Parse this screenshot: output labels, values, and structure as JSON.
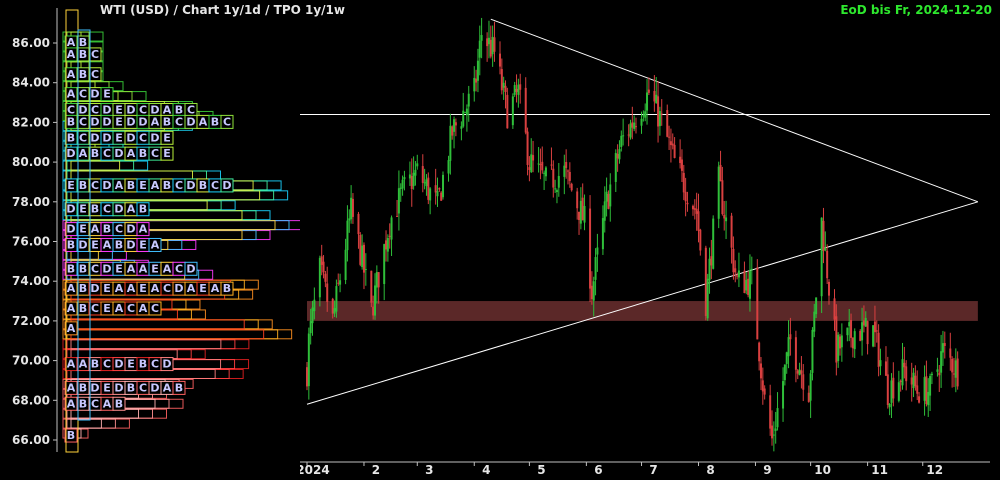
{
  "header": {
    "title": "WTI (USD) /  Chart 1y/1d / TPO 1y/1w",
    "status": "EoD bis Fr, 2024-12-20"
  },
  "colors": {
    "background": "#000000",
    "axis": "#bfbfbf",
    "text": "#e6e6e6",
    "status": "#2ee82e",
    "candle_up": "#2fbf3a",
    "candle_down": "#d94040",
    "trendline": "#ffffff",
    "zone": "#6b2f2f"
  },
  "chart_data": [
    {
      "type": "candlestick",
      "title": "WTI (USD)",
      "x": [
        "2024",
        "2",
        "3",
        "4",
        "5",
        "6",
        "7",
        "8",
        "9",
        "10",
        "11",
        "12"
      ],
      "ylim": [
        65.2,
        87.5
      ],
      "y_ticks": [
        "86.00",
        "84.00",
        "82.00",
        "80.00",
        "78.00",
        "76.00",
        "74.00",
        "72.00",
        "70.00",
        "68.00",
        "66.00"
      ],
      "grid": false,
      "anchors": [
        [
          "2024-01-02",
          71.0
        ],
        [
          "2024-01-08",
          74.5
        ],
        [
          "2024-01-15",
          72.0
        ],
        [
          "2024-01-25",
          77.5
        ],
        [
          "2024-01-30",
          75.5
        ],
        [
          "2024-02-05",
          72.5
        ],
        [
          "2024-02-15",
          77.0
        ],
        [
          "2024-02-22",
          78.5
        ],
        [
          "2024-03-01",
          79.5
        ],
        [
          "2024-03-12",
          77.8
        ],
        [
          "2024-03-20",
          81.5
        ],
        [
          "2024-04-01",
          83.5
        ],
        [
          "2024-04-05",
          86.5
        ],
        [
          "2024-04-12",
          85.5
        ],
        [
          "2024-04-19",
          82.5
        ],
        [
          "2024-04-25",
          83.5
        ],
        [
          "2024-05-01",
          80.0
        ],
        [
          "2024-05-10",
          79.0
        ],
        [
          "2024-05-20",
          79.5
        ],
        [
          "2024-05-31",
          77.0
        ],
        [
          "2024-06-04",
          73.5
        ],
        [
          "2024-06-12",
          78.0
        ],
        [
          "2024-06-20",
          81.0
        ],
        [
          "2024-07-05",
          83.5
        ],
        [
          "2024-07-12",
          82.0
        ],
        [
          "2024-07-19",
          80.0
        ],
        [
          "2024-07-31",
          77.5
        ],
        [
          "2024-08-05",
          73.0
        ],
        [
          "2024-08-12",
          79.0
        ],
        [
          "2024-08-22",
          74.0
        ],
        [
          "2024-08-30",
          74.0
        ],
        [
          "2024-09-06",
          68.0
        ],
        [
          "2024-09-10",
          66.0
        ],
        [
          "2024-09-20",
          71.0
        ],
        [
          "2024-09-30",
          68.5
        ],
        [
          "2024-10-07",
          77.0
        ],
        [
          "2024-10-15",
          70.5
        ],
        [
          "2024-10-25",
          71.5
        ],
        [
          "2024-11-04",
          71.5
        ],
        [
          "2024-11-12",
          68.5
        ],
        [
          "2024-11-21",
          69.5
        ],
        [
          "2024-11-28",
          68.5
        ],
        [
          "2024-12-05",
          68.5
        ],
        [
          "2024-12-12",
          70.5
        ],
        [
          "2024-12-20",
          69.5
        ]
      ],
      "horizontal_level": 82.4,
      "zone": [
        72.0,
        73.0
      ],
      "trendlines": [
        {
          "from": [
            "2024-04-10",
            87.2
          ],
          "to": [
            "2024-12-31",
            78.0
          ]
        },
        {
          "from": [
            "2024-01-01",
            67.8
          ],
          "to": [
            "2024-12-31",
            78.0
          ]
        }
      ]
    },
    {
      "type": "tpo_profile",
      "title": "TPO 1y/1w",
      "price_labels": [
        "86.00",
        "84.00",
        "82.00",
        "80.00",
        "78.00",
        "76.00",
        "74.00",
        "72.00",
        "70.00",
        "68.00",
        "66.00"
      ],
      "rows": [
        {
          "y": 86.0,
          "letters": "AB"
        },
        {
          "y": 85.4,
          "letters": "ABC"
        },
        {
          "y": 84.4,
          "letters": "ABC"
        },
        {
          "y": 83.4,
          "letters": "ACDE"
        },
        {
          "y": 82.6,
          "letters": "CDCDEDCDABC"
        },
        {
          "y": 82.0,
          "letters": "BCDDEDDABCDABC"
        },
        {
          "y": 81.2,
          "letters": "BCDDEDCDE"
        },
        {
          "y": 80.4,
          "letters": "DABCDABCE"
        },
        {
          "y": 78.8,
          "letters": "EBCDABEABCDBCD"
        },
        {
          "y": 77.6,
          "letters": "DEBCDAB"
        },
        {
          "y": 76.6,
          "letters": "DEABCDA"
        },
        {
          "y": 75.8,
          "letters": "BDEABDEA"
        },
        {
          "y": 74.6,
          "letters": "BBCDEAAEACD"
        },
        {
          "y": 73.6,
          "letters": "ABDEAAEACDAEAB"
        },
        {
          "y": 72.6,
          "letters": "ABCEACAC"
        },
        {
          "y": 71.6,
          "letters": "A"
        },
        {
          "y": 69.8,
          "letters": "AABCDEBCD"
        },
        {
          "y": 68.6,
          "letters": "ABDEDBCDAB"
        },
        {
          "y": 67.8,
          "letters": "ABCAB"
        },
        {
          "y": 66.2,
          "letters": "B"
        }
      ]
    }
  ]
}
